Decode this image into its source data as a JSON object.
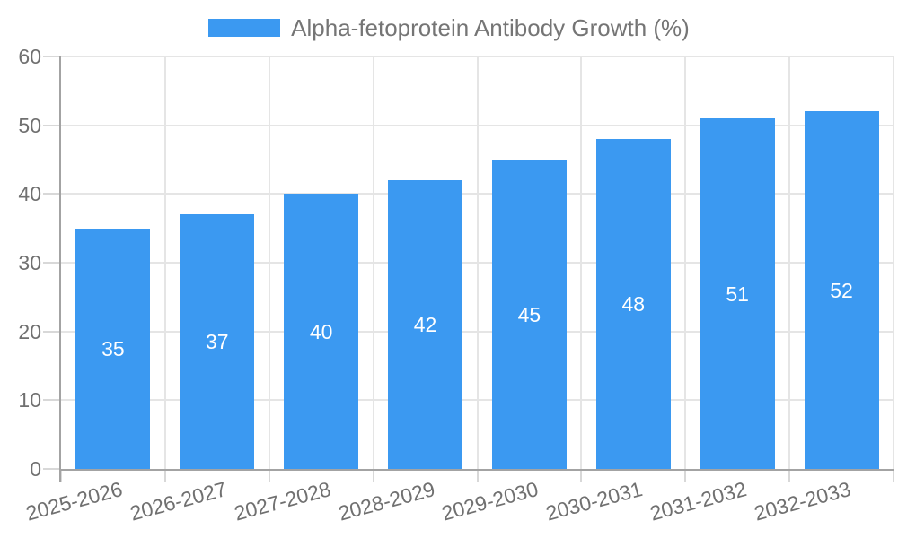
{
  "chart_data": {
    "type": "bar",
    "title": "Alpha-fetoprotein Antibody Growth (%)",
    "categories": [
      "2025-2026",
      "2026-2027",
      "2027-2028",
      "2028-2029",
      "2029-2030",
      "2030-2031",
      "2031-2032",
      "2032-2033"
    ],
    "values": [
      35,
      37,
      40,
      42,
      45,
      48,
      51,
      52
    ],
    "xlabel": "",
    "ylabel": "",
    "ylim": [
      0,
      60
    ],
    "yticks": [
      0,
      10,
      20,
      30,
      40,
      50,
      60
    ],
    "grid": true,
    "legend_position": "top",
    "value_label_position": "inside-center",
    "x_tick_rotation_deg": -15,
    "colors": {
      "bar": "#3b99f1",
      "grid": "#e5e5e5",
      "tick": "#d8d8d8",
      "axis": "#a3a3a3",
      "tick_label": "#707070",
      "legend_label": "#757575",
      "value_label": "#ffffff",
      "background": "#ffffff"
    }
  }
}
